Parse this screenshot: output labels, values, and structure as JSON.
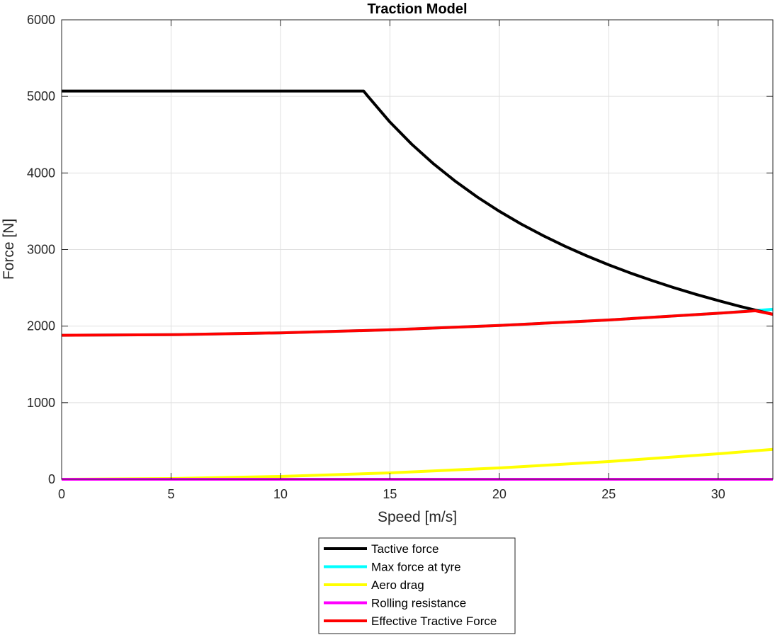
{
  "chart_data": {
    "type": "line",
    "title": "Traction Model",
    "xlabel": "Speed [m/s]",
    "ylabel": "Force [N]",
    "xlim": [
      0,
      32.5
    ],
    "ylim": [
      0,
      6000
    ],
    "xticks": [
      0,
      5,
      10,
      15,
      20,
      25,
      30
    ],
    "yticks": [
      0,
      1000,
      2000,
      3000,
      4000,
      5000,
      6000
    ],
    "grid": true,
    "legend_position": "bottom-outside",
    "series": [
      {
        "name": "Tactive force",
        "color": "#000000",
        "x": [
          0,
          13.8,
          14,
          15,
          16,
          17,
          18,
          19,
          20,
          21,
          22,
          23,
          24,
          25,
          26,
          27,
          28,
          29,
          30,
          31,
          32,
          32.5
        ],
        "y": [
          5070,
          5070,
          5000,
          4665,
          4375,
          4118,
          3889,
          3684,
          3500,
          3333,
          3182,
          3043,
          2917,
          2800,
          2692,
          2593,
          2500,
          2414,
          2333,
          2258,
          2188,
          2154
        ]
      },
      {
        "name": "Max force at tyre",
        "color": "#00FFFF",
        "x": [
          0,
          5,
          10,
          15,
          20,
          25,
          30,
          32.5
        ],
        "y": [
          1880,
          1888,
          1912,
          1952,
          2008,
          2080,
          2168,
          2220
        ]
      },
      {
        "name": "Aero drag",
        "color": "#FFFF00",
        "x": [
          0,
          5,
          10,
          15,
          20,
          25,
          30,
          32.5
        ],
        "y": [
          0,
          9,
          37,
          83,
          148,
          231,
          333,
          390
        ]
      },
      {
        "name": "Rolling resistance",
        "color": "#FF00FF",
        "x": [
          0,
          32.5
        ],
        "y": [
          0,
          0
        ]
      },
      {
        "name": "Effective Tractive Force",
        "color": "#FF0000",
        "x": [
          0,
          5,
          10,
          15,
          20,
          25,
          30,
          31.7,
          32.5
        ],
        "y": [
          1880,
          1888,
          1912,
          1952,
          2008,
          2080,
          2168,
          2200,
          2154
        ]
      }
    ]
  }
}
